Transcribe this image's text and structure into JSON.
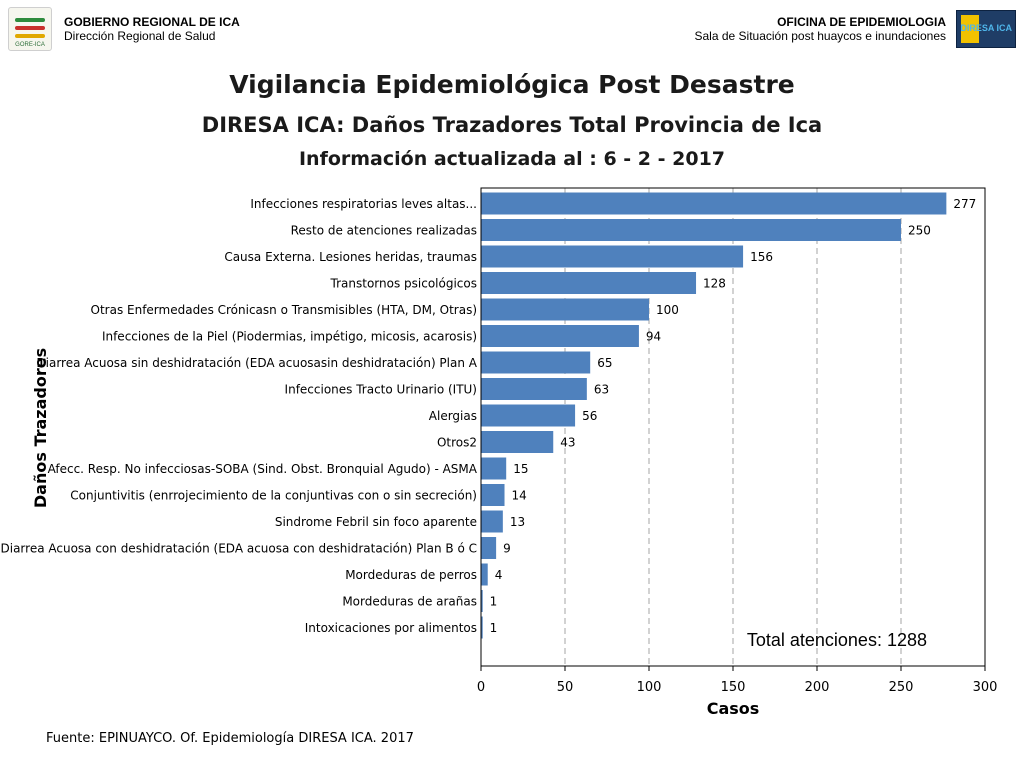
{
  "header": {
    "org_name": "GOBIERNO REGIONAL DE ICA",
    "org_sub": "Dirección Regional de Salud",
    "logo_left_text": "GORE-ICA",
    "office_name": "OFICINA DE EPIDEMIOLOGIA",
    "office_sub": "Sala de Situación post huaycos e inundaciones",
    "logo_right_text": "DIRESA ICA"
  },
  "titles": {
    "line1": "Vigilancia Epidemiológica Post Desastre",
    "line2": "DIRESA ICA: Daños Trazadores Total Provincia de Ica",
    "line3": "Información actualizada al  : 6 - 2 - 2017"
  },
  "chart_data": {
    "type": "bar",
    "orientation": "horizontal",
    "title": "",
    "xlabel": "Casos",
    "ylabel": "Daños Trazadores",
    "xlim": [
      0,
      300
    ],
    "x_ticks": [
      0,
      50,
      100,
      150,
      200,
      250,
      300
    ],
    "grid": "vertical dashed",
    "bar_color": "#4f81bd",
    "categories": [
      "Infecciones respiratorias leves altas...",
      "Resto de atenciones realizadas",
      "Causa Externa. Lesiones heridas, traumas",
      "Transtornos psicológicos",
      "Otras Enfermedades Crónicasn o Transmisibles (HTA, DM, Otras)",
      "Infecciones de la Piel (Piodermias, impétigo, micosis, acarosis)",
      "Diarrea Acuosa sin deshidratación (EDA acuosasin deshidratación) Plan A",
      "Infecciones Tracto Urinario (ITU)",
      "Alergias",
      "Otros2",
      "Afecc. Resp. No infecciosas-SOBA (Sind. Obst. Bronquial Agudo) - ASMA",
      "Conjuntivitis (enrrojecimiento de la conjuntivas con o sin secreción)",
      "Sindrome Febril sin foco aparente",
      "Diarrea Acuosa con deshidratación (EDA acuosa con deshidratación) Plan B ó C",
      "Mordeduras de perros",
      "Mordeduras de arañas",
      "Intoxicaciones por alimentos"
    ],
    "values": [
      277,
      250,
      156,
      128,
      100,
      94,
      65,
      63,
      56,
      43,
      15,
      14,
      13,
      9,
      4,
      1,
      1
    ],
    "annotation": "Total atenciones: 1288"
  },
  "footer": {
    "source": "Fuente: EPINUAYCO. Of. Epidemiología DIRESA ICA. 2017"
  }
}
